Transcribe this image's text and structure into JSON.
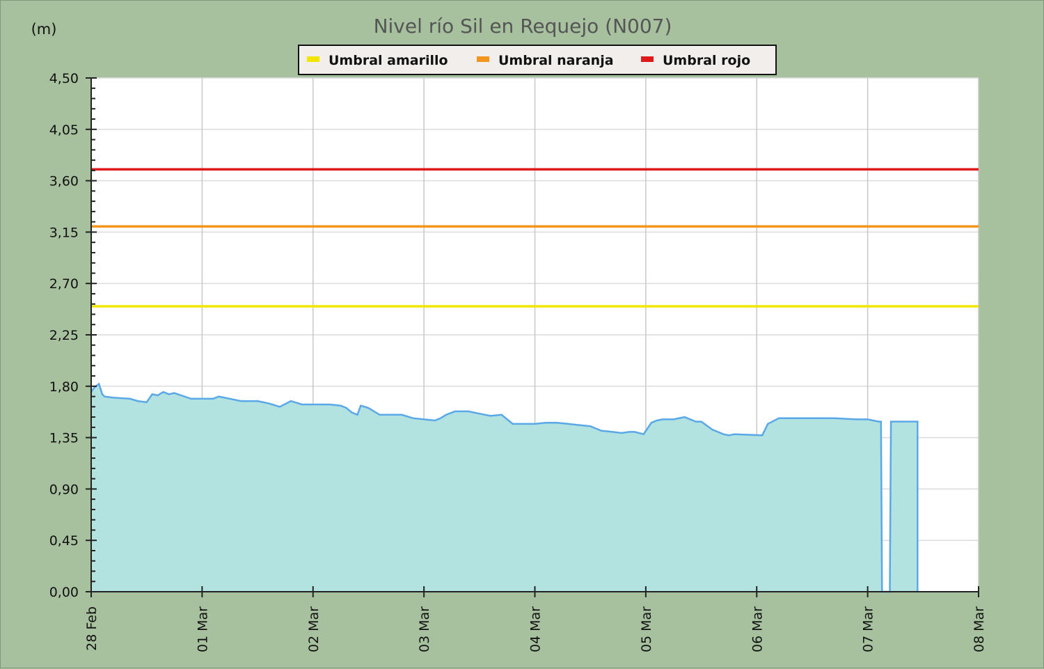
{
  "chart_data": {
    "type": "area",
    "title": "Nivel río Sil en Requejo  (N007)",
    "ylabel": "(m)",
    "xlabel": "",
    "ylim": [
      0,
      4.5
    ],
    "yticks": [
      "0,00",
      "0,45",
      "0,90",
      "1,35",
      "1,80",
      "2,25",
      "2,70",
      "3,15",
      "3,60",
      "4,05",
      "4,50"
    ],
    "xlim": [
      0,
      8
    ],
    "xticks": [
      "28 Feb",
      "01 Mar",
      "02 Mar",
      "03 Mar",
      "04 Mar",
      "05 Mar",
      "06 Mar",
      "07 Mar",
      "08 Mar"
    ],
    "grid": true,
    "legend_position": "top-center",
    "thresholds": [
      {
        "name": "Umbral amarillo",
        "value": 2.5,
        "color": "#f2e600"
      },
      {
        "name": "Umbral naranja",
        "value": 3.2,
        "color": "#f2961e"
      },
      {
        "name": "Umbral rojo",
        "value": 3.7,
        "color": "#e01a1a"
      }
    ],
    "series": [
      {
        "line_color": "#5aa8e8",
        "fill_color": "#b3e3e1",
        "x": [
          0,
          0.03,
          0.07,
          0.1,
          0.12,
          0.2,
          0.35,
          0.42,
          0.5,
          0.55,
          0.6,
          0.65,
          0.7,
          0.75,
          0.9,
          1.0,
          1.1,
          1.15,
          1.25,
          1.35,
          1.5,
          1.6,
          1.7,
          1.8,
          1.9,
          2.0,
          2.15,
          2.25,
          2.3,
          2.35,
          2.4,
          2.43,
          2.5,
          2.55,
          2.6,
          2.8,
          2.9,
          3.0,
          3.1,
          3.15,
          3.2,
          3.28,
          3.4,
          3.5,
          3.6,
          3.7,
          3.8,
          4.0,
          4.1,
          4.2,
          4.3,
          4.4,
          4.5,
          4.6,
          4.7,
          4.78,
          4.85,
          4.9,
          4.98,
          5.05,
          5.1,
          5.15,
          5.25,
          5.35,
          5.45,
          5.5,
          5.6,
          5.7,
          5.75,
          5.8,
          6.05,
          6.1,
          6.2,
          6.5,
          6.7,
          6.9,
          7.0,
          7.1,
          7.12,
          7.13,
          7.2,
          7.21,
          7.45
        ],
        "y": [
          1.75,
          1.79,
          1.82,
          1.73,
          1.71,
          1.7,
          1.69,
          1.67,
          1.66,
          1.73,
          1.72,
          1.75,
          1.73,
          1.74,
          1.69,
          1.69,
          1.69,
          1.71,
          1.69,
          1.67,
          1.67,
          1.65,
          1.62,
          1.67,
          1.64,
          1.64,
          1.64,
          1.63,
          1.61,
          1.57,
          1.55,
          1.63,
          1.61,
          1.58,
          1.55,
          1.55,
          1.52,
          1.51,
          1.5,
          1.52,
          1.55,
          1.58,
          1.58,
          1.56,
          1.54,
          1.55,
          1.47,
          1.47,
          1.48,
          1.48,
          1.47,
          1.46,
          1.45,
          1.41,
          1.4,
          1.39,
          1.4,
          1.4,
          1.38,
          1.48,
          1.5,
          1.51,
          1.51,
          1.53,
          1.49,
          1.49,
          1.42,
          1.38,
          1.37,
          1.38,
          1.37,
          1.47,
          1.52,
          1.52,
          1.52,
          1.51,
          1.51,
          1.49,
          1.49,
          0.0,
          0.0,
          1.49,
          1.49
        ]
      }
    ]
  }
}
